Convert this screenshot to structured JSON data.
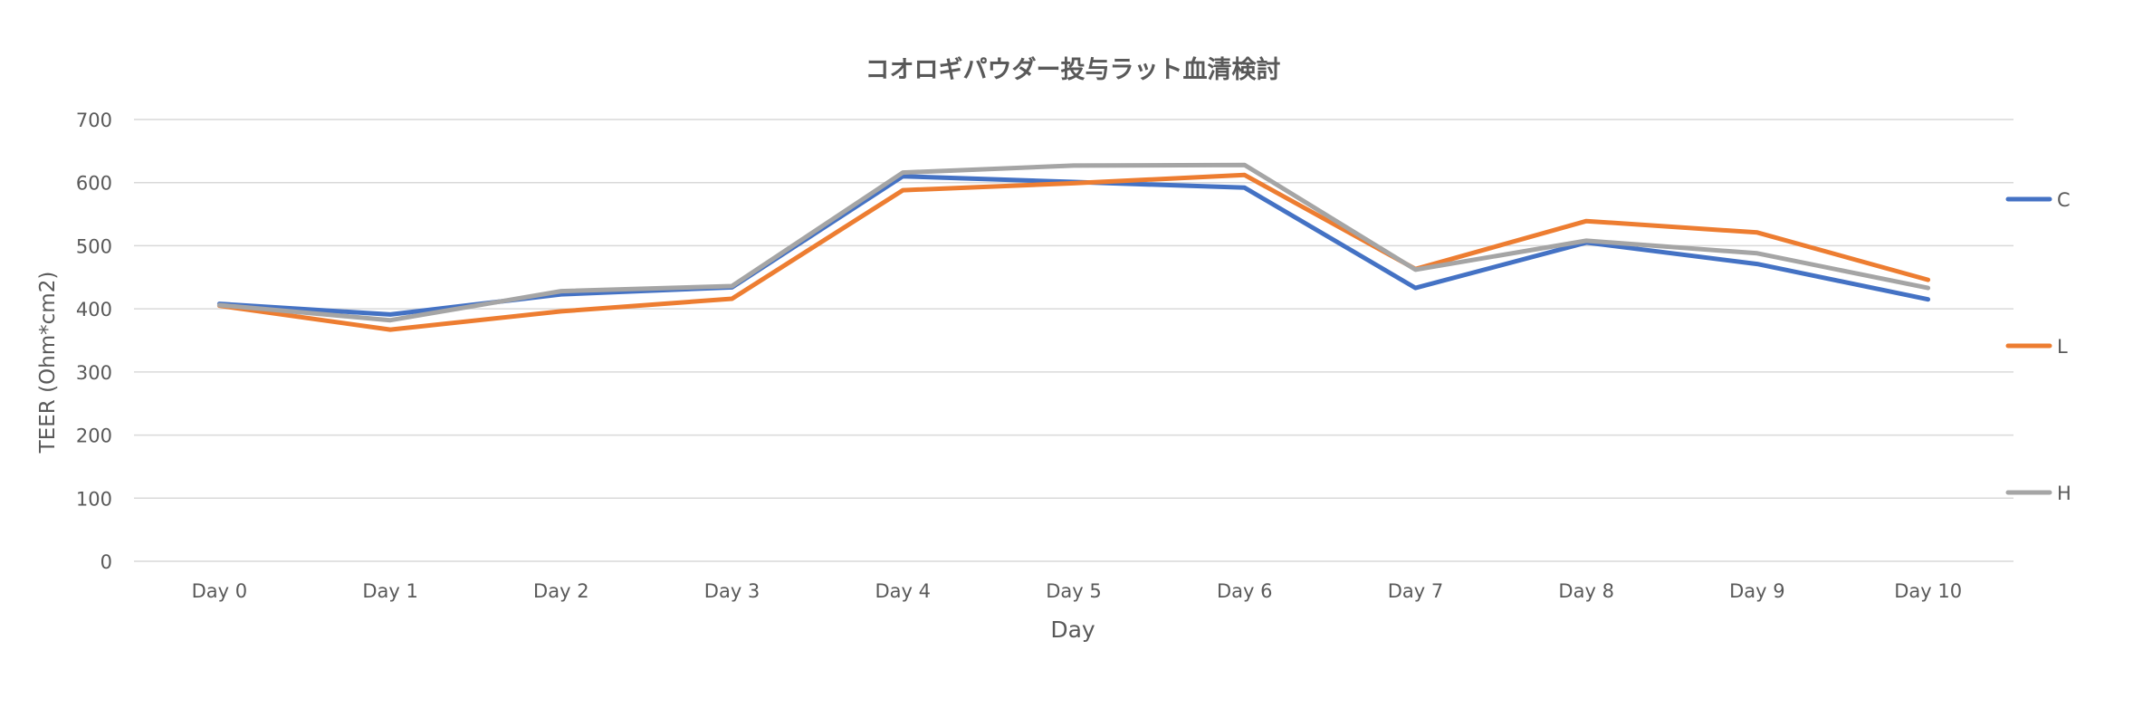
{
  "chart_data": {
    "type": "line",
    "title": "コオロギパウダー投与ラット血清検討",
    "xlabel": "Day",
    "ylabel": "TEER (Ohm*cm2)",
    "ylim": [
      0,
      700
    ],
    "yticks": [
      0,
      100,
      200,
      300,
      400,
      500,
      600,
      700
    ],
    "grid": true,
    "legend": "right",
    "categories": [
      "Day 0",
      "Day 1",
      "Day 2",
      "Day 3",
      "Day 4",
      "Day 5",
      "Day 6",
      "Day 7",
      "Day 8",
      "Day 9",
      "Day 10"
    ],
    "series": [
      {
        "name": "C",
        "color": "#4472C4",
        "values": [
          408,
          391,
          423,
          434,
          610,
          601,
          592,
          433,
          505,
          471,
          415
        ]
      },
      {
        "name": "L",
        "color": "#ED7D31",
        "values": [
          405,
          367,
          396,
          416,
          588,
          599,
          612,
          463,
          539,
          521,
          446
        ]
      },
      {
        "name": "H",
        "color": "#A5A5A5",
        "values": [
          406,
          382,
          428,
          436,
          616,
          627,
          628,
          462,
          508,
          488,
          433
        ]
      }
    ]
  }
}
